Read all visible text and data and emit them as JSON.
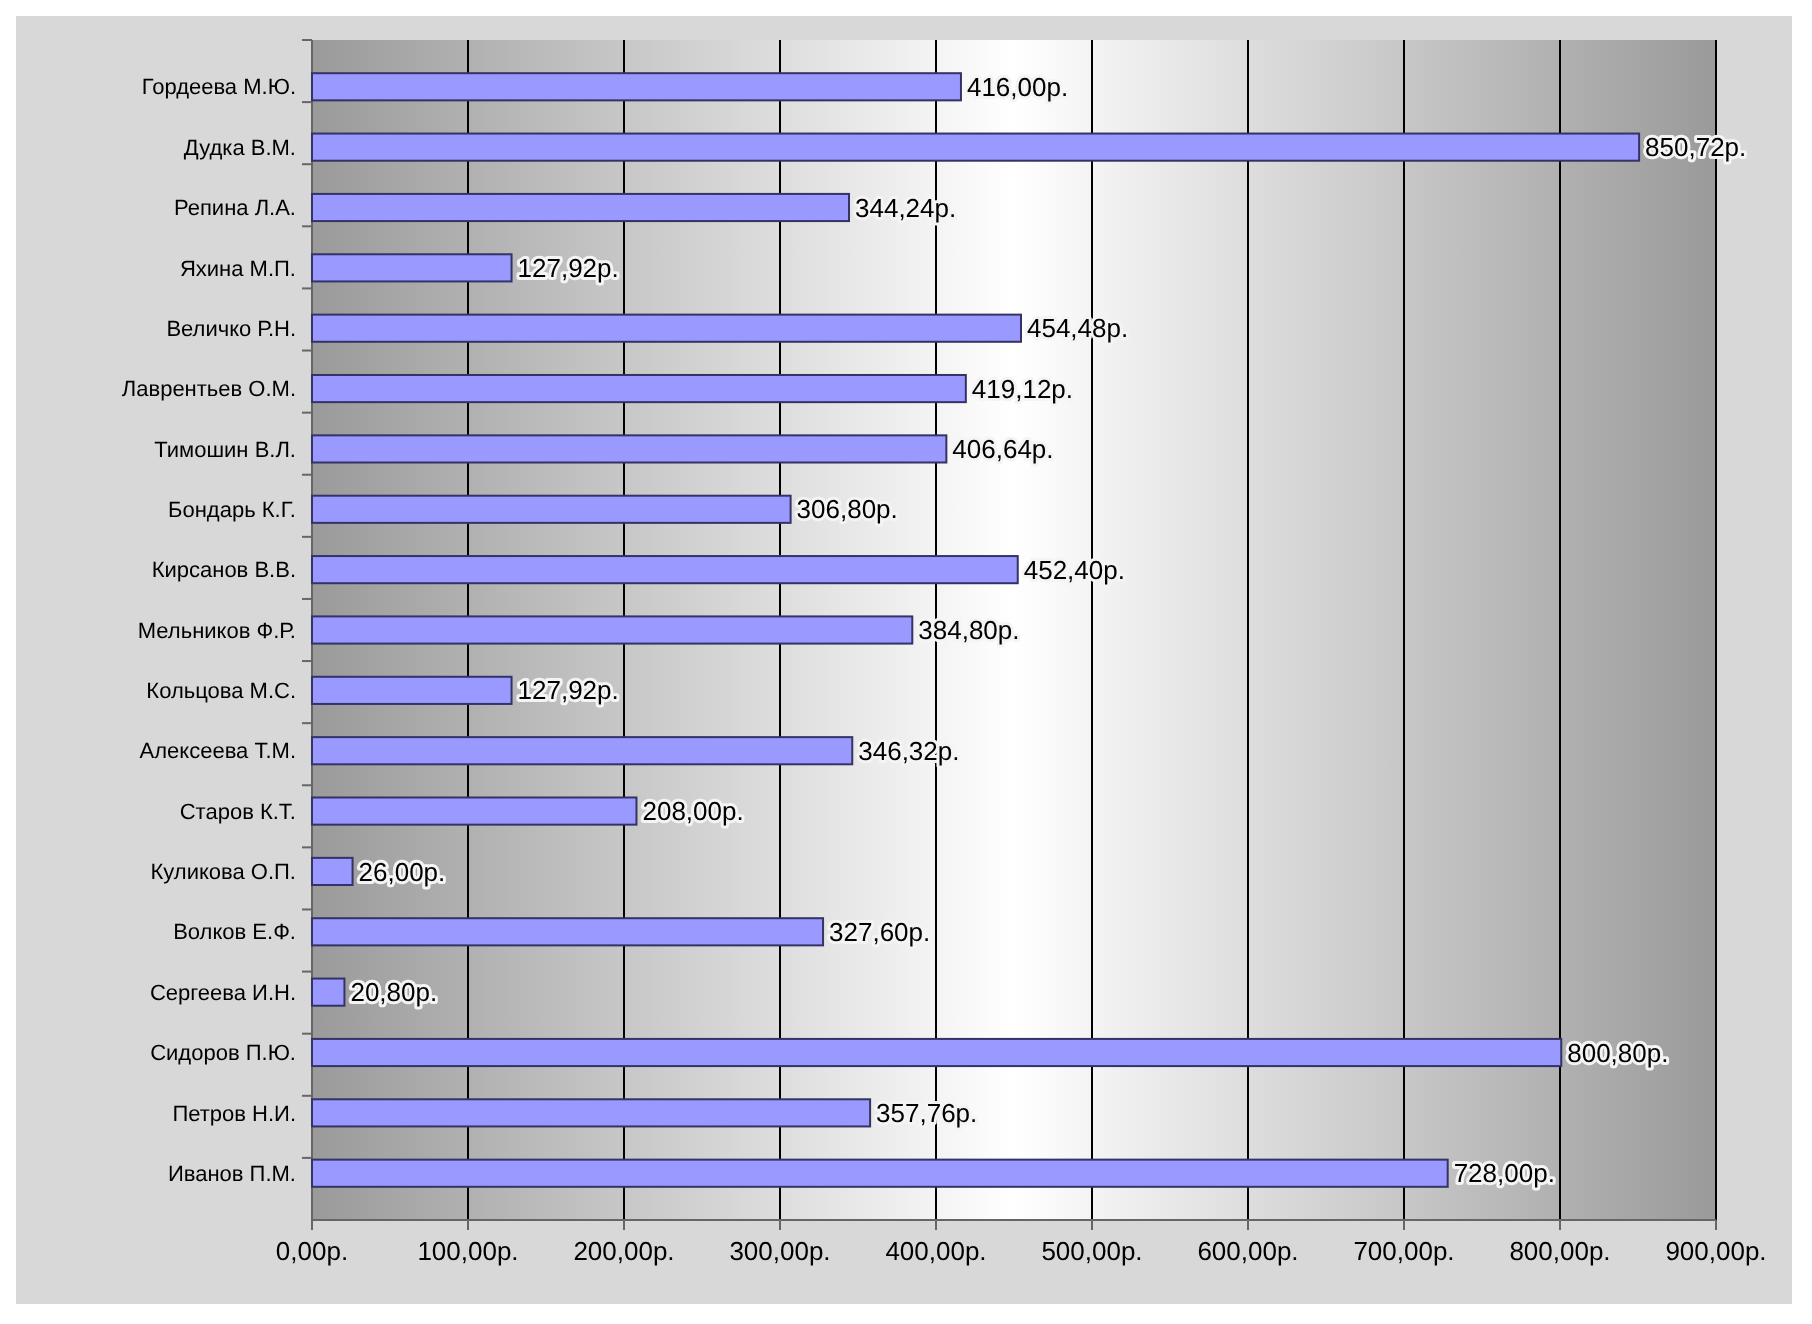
{
  "chart_data": {
    "type": "bar",
    "orientation": "horizontal",
    "categories": [
      "Гордеева М.Ю.",
      "Дудка В.М.",
      "Репина Л.А.",
      "Яхина М.П.",
      "Величко Р.Н.",
      "Лаврентьев О.М.",
      "Тимошин В.Л.",
      "Бондарь К.Г.",
      "Кирсанов В.В.",
      "Мельников Ф.Р.",
      "Кольцова М.С.",
      "Алексеева Т.М.",
      "Старов К.Т.",
      "Куликова О.П.",
      "Волков Е.Ф.",
      "Сергеева И.Н.",
      "Сидоров П.Ю.",
      "Петров Н.И.",
      "Иванов П.М."
    ],
    "values": [
      416,
      850.72,
      344.24,
      127.92,
      454.48,
      419.12,
      406.64,
      306.8,
      452.4,
      384.8,
      127.92,
      346.32,
      208,
      26,
      327.6,
      20.8,
      800.8,
      357.76,
      728
    ],
    "value_labels": [
      "416,00р.",
      "850,72р.",
      "344,24р.",
      "127,92р.",
      "454,48р.",
      "419,12р.",
      "406,64р.",
      "306,80р.",
      "452,40р.",
      "384,80р.",
      "127,92р.",
      "346,32р.",
      "208,00р.",
      "26,00р.",
      "327,60р.",
      "20,80р.",
      "800,80р.",
      "357,76р.",
      "728,00р."
    ],
    "color": "#9999ff",
    "xlim": [
      0,
      900
    ],
    "xticks": [
      {
        "value": 0,
        "label": "0,00р."
      },
      {
        "value": 100,
        "label": "100,00р."
      },
      {
        "value": 200,
        "label": "200,00р."
      },
      {
        "value": 300,
        "label": "300,00р."
      },
      {
        "value": 400,
        "label": "400,00р."
      },
      {
        "value": 500,
        "label": "500,00р."
      },
      {
        "value": 600,
        "label": "600,00р."
      },
      {
        "value": 700,
        "label": "700,00р."
      },
      {
        "value": 800,
        "label": "800,00р."
      },
      {
        "value": 900,
        "label": "900,00р."
      }
    ],
    "grid": "x"
  }
}
